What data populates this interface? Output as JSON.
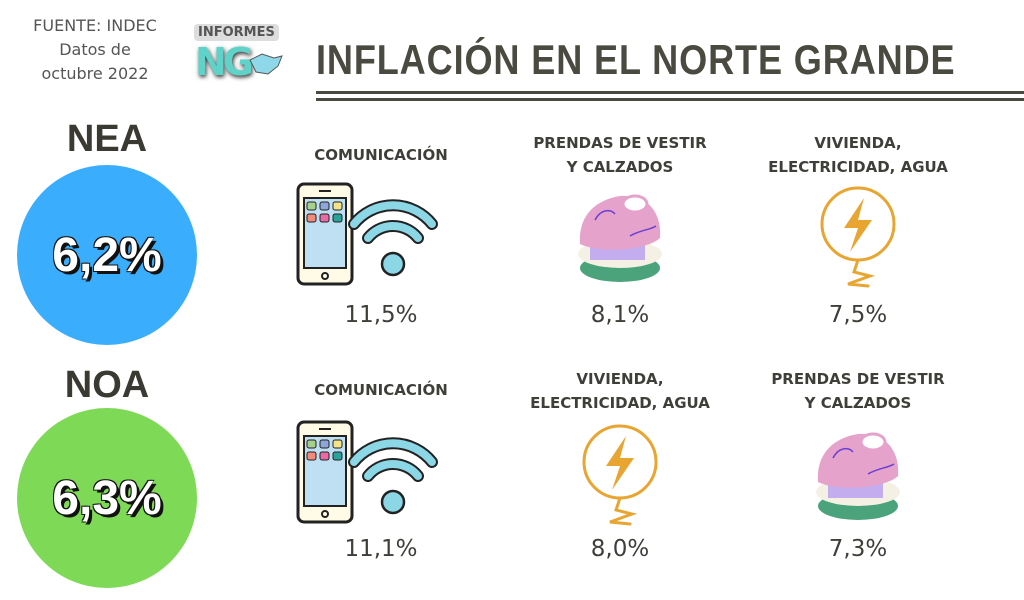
{
  "source": {
    "line1": "FUENTE: INDEC",
    "line2": "Datos de",
    "line3": "octubre 2022"
  },
  "logo": {
    "word": "INFORMES",
    "letters": "NG"
  },
  "title": "INFLACIÓN EN EL NORTE GRANDE",
  "colors": {
    "nea": "#3aaefc",
    "noa": "#7ed957",
    "text": "#4a4a40"
  },
  "regions": [
    {
      "name": "NEA",
      "value": "6,2%",
      "items": [
        {
          "label1": "COMUNICACIÓN",
          "label2": "",
          "value": "11,5%",
          "icon": "phone-wifi-icon"
        },
        {
          "label1": "PRENDAS DE VESTIR",
          "label2": "Y CALZADOS",
          "value": "8,1%",
          "icon": "clothes-stack-icon"
        },
        {
          "label1": "VIVIENDA,",
          "label2": "ELECTRICIDAD, AGUA",
          "value": "7,5%",
          "icon": "electricity-icon"
        }
      ]
    },
    {
      "name": "NOA",
      "value": "6,3%",
      "items": [
        {
          "label1": "COMUNICACIÓN",
          "label2": "",
          "value": "11,1%",
          "icon": "phone-wifi-icon"
        },
        {
          "label1": "VIVIENDA,",
          "label2": "ELECTRICIDAD, AGUA",
          "value": "8,0%",
          "icon": "electricity-icon"
        },
        {
          "label1": "PRENDAS DE VESTIR",
          "label2": "Y CALZADOS",
          "value": "7,3%",
          "icon": "clothes-stack-icon"
        }
      ]
    }
  ]
}
